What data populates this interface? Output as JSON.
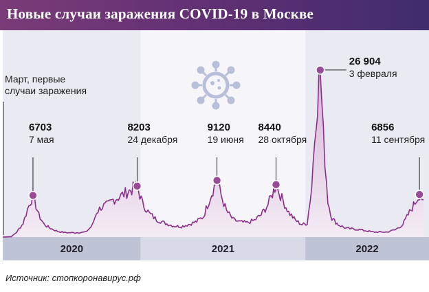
{
  "header": {
    "title": "Новые случаи заражения COVID-19 в Москве"
  },
  "footer": {
    "source": "Источник: стопкоронавирус.рф"
  },
  "colors": {
    "accent": "#7a3b78",
    "line": "#8b2f8a",
    "marker": "#9a4b98",
    "fill_top": "#d4b3d6",
    "fill_bottom": "#f4ecf5",
    "band_light": "#e9eaf2",
    "band_dark": "#bfc3d6",
    "virus": "#b8bfd9"
  },
  "annotations": [
    {
      "id": "first",
      "text_lines": [
        "Март, первые",
        "случаи заражения"
      ]
    }
  ],
  "chart_data": {
    "type": "area",
    "title": "Новые случаи заражения COVID-19 в Москве",
    "xlabel": "",
    "ylabel": "",
    "x_range": [
      "2020-03-01",
      "2022-09-20"
    ],
    "ylim": [
      0,
      28000
    ],
    "years": [
      "2020",
      "2021",
      "2022"
    ],
    "grid": false,
    "peaks": [
      {
        "date": "2020-05-07",
        "value": 6703,
        "value_label": "6703",
        "date_label": "7 мая"
      },
      {
        "date": "2020-12-24",
        "value": 8203,
        "value_label": "8203",
        "date_label": "24 декабря"
      },
      {
        "date": "2021-06-19",
        "value": 9120,
        "value_label": "9120",
        "date_label": "19 июня"
      },
      {
        "date": "2021-10-28",
        "value": 8440,
        "value_label": "8440",
        "date_label": "28 октября"
      },
      {
        "date": "2022-02-03",
        "value": 26904,
        "value_label": "26 904",
        "date_label": "3 февраля"
      },
      {
        "date": "2022-09-11",
        "value": 6856,
        "value_label": "6856",
        "date_label": "11 сентября"
      }
    ],
    "series": [
      {
        "x": [
          "2020-03-01",
          "2020-03-20",
          "2020-04-01",
          "2020-04-15",
          "2020-04-25",
          "2020-05-07",
          "2020-05-20",
          "2020-06-01",
          "2020-06-15",
          "2020-07-01",
          "2020-07-20",
          "2020-08-10",
          "2020-09-01",
          "2020-09-15",
          "2020-09-25",
          "2020-10-05",
          "2020-10-20",
          "2020-11-01",
          "2020-11-15",
          "2020-12-01",
          "2020-12-15",
          "2020-12-24",
          "2021-01-05",
          "2021-01-20",
          "2021-02-05",
          "2021-02-25",
          "2021-03-15",
          "2021-04-01",
          "2021-04-20",
          "2021-05-05",
          "2021-05-20",
          "2021-06-01",
          "2021-06-10",
          "2021-06-19",
          "2021-06-28",
          "2021-07-10",
          "2021-07-25",
          "2021-08-10",
          "2021-08-25",
          "2021-09-10",
          "2021-09-25",
          "2021-10-10",
          "2021-10-20",
          "2021-10-28",
          "2021-11-10",
          "2021-11-25",
          "2021-12-10",
          "2021-12-25",
          "2022-01-05",
          "2022-01-15",
          "2022-01-25",
          "2022-02-03",
          "2022-02-10",
          "2022-02-20",
          "2022-03-01",
          "2022-03-15",
          "2022-04-01",
          "2022-05-01",
          "2022-06-01",
          "2022-07-01",
          "2022-07-20",
          "2022-08-05",
          "2022-08-20",
          "2022-09-01",
          "2022-09-11",
          "2022-09-20"
        ],
        "y": [
          0,
          50,
          800,
          2200,
          4500,
          6703,
          3500,
          2000,
          1400,
          900,
          700,
          700,
          800,
          1800,
          4000,
          4800,
          5200,
          6000,
          6500,
          7200,
          7800,
          8203,
          5400,
          3800,
          2800,
          2200,
          1800,
          1700,
          2100,
          2500,
          3300,
          5800,
          7600,
          9120,
          6800,
          4200,
          2800,
          2400,
          2300,
          2700,
          3600,
          5200,
          7000,
          8440,
          6200,
          4000,
          2700,
          2000,
          2200,
          8000,
          20000,
          26904,
          16000,
          5800,
          3000,
          2000,
          1400,
          1200,
          800,
          800,
          1200,
          2000,
          4000,
          5500,
          6856,
          6000
        ]
      }
    ]
  }
}
